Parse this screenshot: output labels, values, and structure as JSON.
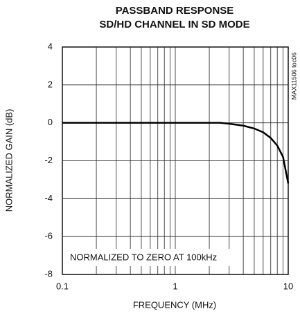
{
  "chart_data": {
    "type": "line",
    "title": [
      "PASSBAND RESPONSE",
      "SD/HD CHANNEL IN SD MODE"
    ],
    "xlabel": "FREQUENCY (MHz)",
    "ylabel": "NORMALIZED GAIN (dB)",
    "annotation": "NORMALIZED TO ZERO AT 100kHz",
    "side_note": "MAX11506 toc06",
    "x": [
      0.1,
      0.5,
      1,
      2,
      2.5,
      3,
      4,
      5,
      6,
      7,
      8,
      9,
      10
    ],
    "series": [
      {
        "name": "gain",
        "color": "#000000",
        "values": [
          0,
          0,
          0,
          0,
          0,
          -0.05,
          -0.15,
          -0.3,
          -0.5,
          -0.8,
          -1.2,
          -1.8,
          -3.2
        ]
      }
    ],
    "xlog": true,
    "xlim": [
      0.1,
      10
    ],
    "xticks": [
      0.1,
      1,
      10
    ],
    "xminorticks": [
      0.2,
      0.3,
      0.4,
      0.5,
      0.6,
      0.7,
      0.8,
      0.9,
      2,
      3,
      4,
      5,
      6,
      7,
      8,
      9
    ],
    "ylim": [
      -8,
      4
    ],
    "yticks": [
      -8,
      -6,
      -4,
      -2,
      0,
      2,
      4
    ],
    "grid": true
  }
}
